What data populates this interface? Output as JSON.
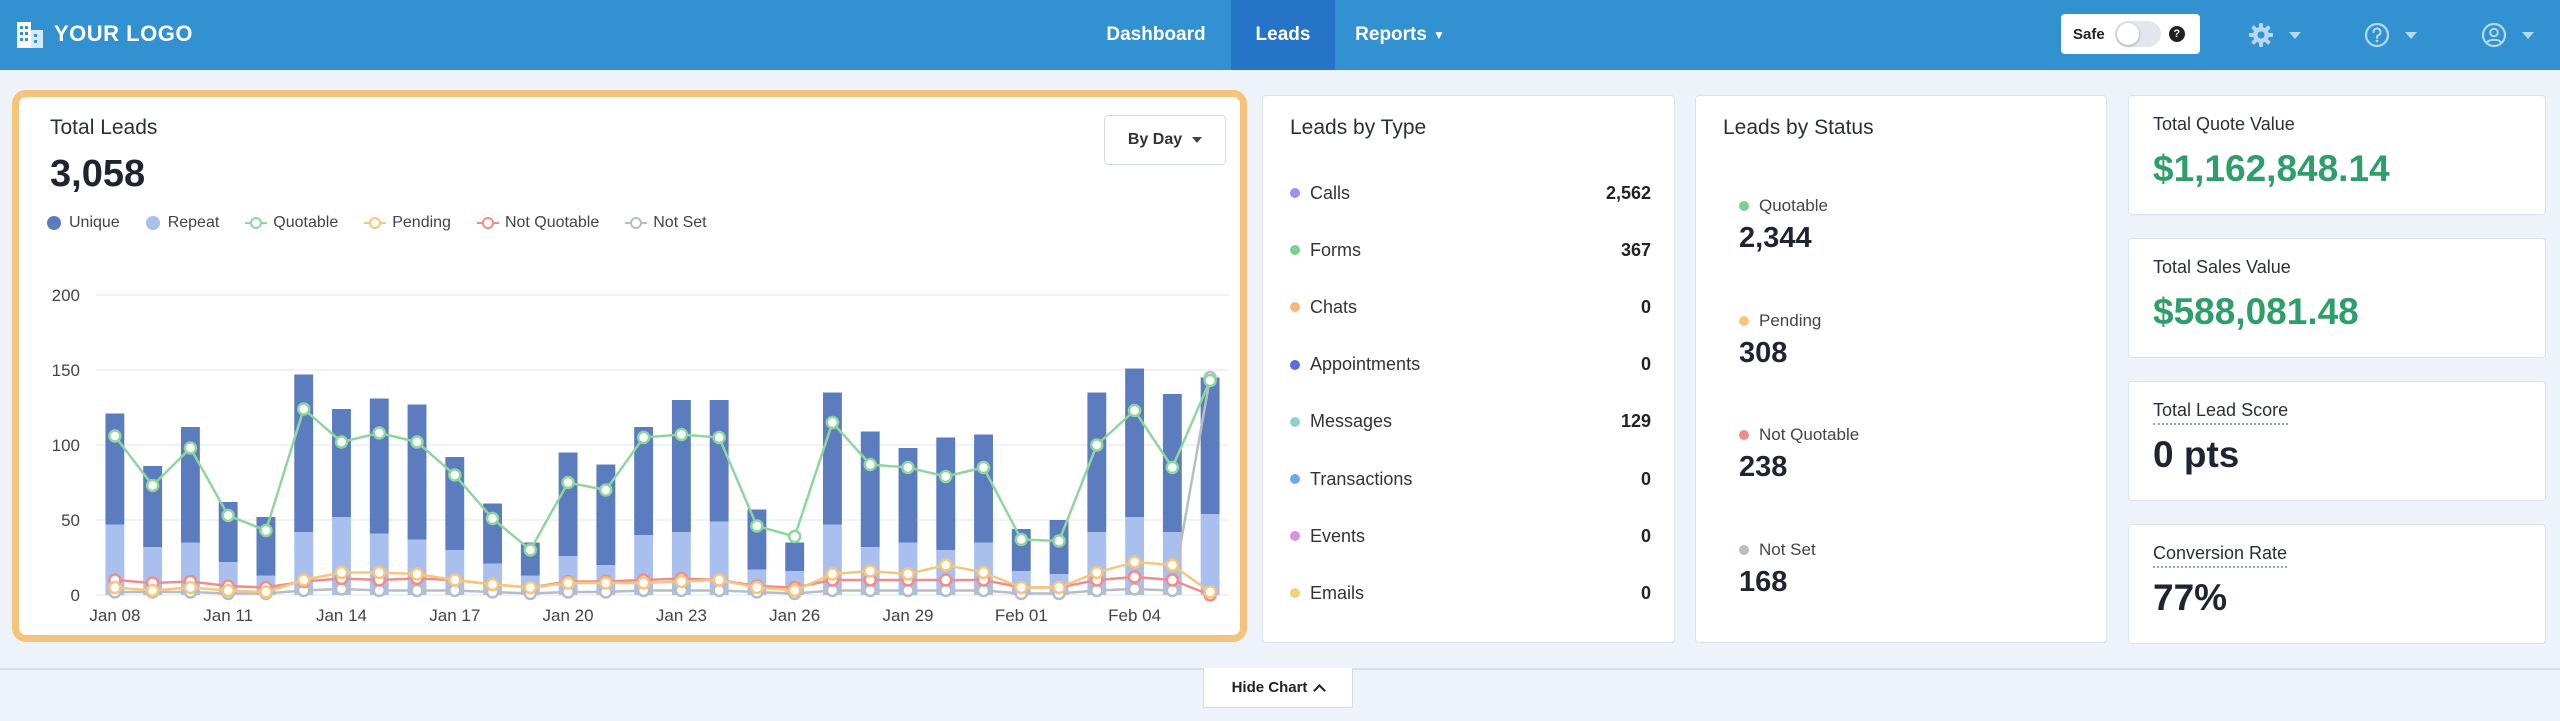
{
  "brand": {
    "logo_text": "YOUR LOGO"
  },
  "nav": {
    "items": [
      {
        "label": "Dashboard",
        "active": false
      },
      {
        "label": "Leads",
        "active": true
      },
      {
        "label": "Reports",
        "active": false
      }
    ],
    "safe_label": "Safe",
    "safe_on": false,
    "help_glyph": "?",
    "icons": [
      "settings-gear-icon",
      "help-circle-icon",
      "user-profile-icon"
    ]
  },
  "chart_card": {
    "title": "Total Leads",
    "total": "3,058",
    "range_button": "By Day",
    "legend": [
      {
        "label": "Unique",
        "color": "#5b7dbf",
        "style": "dot"
      },
      {
        "label": "Repeat",
        "color": "#a9c0ef",
        "style": "dot"
      },
      {
        "label": "Quotable",
        "color": "#8fd69e",
        "style": "ring"
      },
      {
        "label": "Pending",
        "color": "#f6c77a",
        "style": "ring"
      },
      {
        "label": "Not Quotable",
        "color": "#f08c8c",
        "style": "ring"
      },
      {
        "label": "Not Set",
        "color": "#b8bcc4",
        "style": "ring"
      }
    ]
  },
  "chart_data": {
    "type": "bar",
    "stacked": true,
    "ylim": [
      0,
      200
    ],
    "yticks": [
      0,
      50,
      100,
      150,
      200
    ],
    "grid": true,
    "categories": [
      "Jan 08",
      "Jan 09",
      "Jan 10",
      "Jan 11",
      "Jan 12",
      "Jan 13",
      "Jan 14",
      "Jan 15",
      "Jan 16",
      "Jan 17",
      "Jan 18",
      "Jan 19",
      "Jan 20",
      "Jan 21",
      "Jan 22",
      "Jan 23",
      "Jan 24",
      "Jan 25",
      "Jan 26",
      "Jan 27",
      "Jan 28",
      "Jan 29",
      "Jan 30",
      "Jan 31",
      "Feb 01",
      "Feb 02",
      "Feb 03",
      "Feb 04",
      "Feb 05",
      "Feb 06"
    ],
    "xtick_labels": [
      "Jan 08",
      "Jan 11",
      "Jan 14",
      "Jan 17",
      "Jan 20",
      "Jan 23",
      "Jan 26",
      "Jan 29",
      "Feb 01",
      "Feb 04"
    ],
    "xtick_indices": [
      0,
      3,
      6,
      9,
      12,
      15,
      18,
      21,
      24,
      27
    ],
    "series": [
      {
        "name": "Repeat",
        "kind": "bar",
        "color": "#a9c0ef",
        "values": [
          47,
          32,
          35,
          22,
          13,
          42,
          52,
          41,
          37,
          30,
          21,
          13,
          26,
          20,
          40,
          42,
          49,
          17,
          16,
          47,
          32,
          35,
          30,
          35,
          16,
          14,
          42,
          52,
          42,
          54
        ]
      },
      {
        "name": "Unique",
        "kind": "bar",
        "color": "#5b7dbf",
        "values": [
          74,
          54,
          77,
          40,
          39,
          105,
          72,
          90,
          90,
          62,
          40,
          22,
          69,
          67,
          72,
          88,
          81,
          40,
          19,
          88,
          77,
          63,
          75,
          72,
          28,
          36,
          93,
          99,
          92,
          91
        ]
      },
      {
        "name": "Quotable",
        "kind": "line",
        "color": "#8fd69e",
        "values": [
          106,
          73,
          98,
          53,
          43,
          124,
          102,
          108,
          102,
          80,
          51,
          30,
          75,
          70,
          105,
          107,
          105,
          46,
          39,
          115,
          87,
          85,
          79,
          85,
          37,
          36,
          100,
          123,
          85,
          143
        ]
      },
      {
        "name": "Pending",
        "kind": "line",
        "color": "#f6c77a",
        "values": [
          5,
          3,
          5,
          3,
          2,
          10,
          15,
          15,
          14,
          10,
          7,
          5,
          8,
          8,
          8,
          9,
          10,
          5,
          3,
          14,
          16,
          14,
          20,
          15,
          5,
          5,
          15,
          22,
          20,
          2
        ]
      },
      {
        "name": "Not Quotable",
        "kind": "line",
        "color": "#f08c8c",
        "values": [
          10,
          8,
          9,
          6,
          5,
          9,
          11,
          10,
          11,
          10,
          7,
          5,
          9,
          9,
          10,
          11,
          10,
          6,
          5,
          10,
          10,
          10,
          10,
          10,
          5,
          5,
          10,
          12,
          10,
          0
        ]
      },
      {
        "name": "Not Set",
        "kind": "line",
        "color": "#b8bcc4",
        "values": [
          2,
          2,
          2,
          1,
          1,
          3,
          4,
          3,
          3,
          3,
          2,
          1,
          2,
          2,
          3,
          3,
          3,
          2,
          1,
          3,
          3,
          3,
          3,
          3,
          1,
          1,
          3,
          4,
          3,
          145
        ]
      }
    ]
  },
  "leads_by_type": {
    "title": "Leads by Type",
    "rows": [
      {
        "label": "Calls",
        "value": "2,562",
        "color": "#a58de8"
      },
      {
        "label": "Forms",
        "value": "367",
        "color": "#7ccf8f"
      },
      {
        "label": "Chats",
        "value": "0",
        "color": "#f6b87a"
      },
      {
        "label": "Appointments",
        "value": "0",
        "color": "#5b6fd6"
      },
      {
        "label": "Messages",
        "value": "129",
        "color": "#8fd0cf"
      },
      {
        "label": "Transactions",
        "value": "0",
        "color": "#6fa8e8"
      },
      {
        "label": "Events",
        "value": "0",
        "color": "#e08ee0"
      },
      {
        "label": "Emails",
        "value": "0",
        "color": "#f6cf7a"
      }
    ]
  },
  "leads_by_status": {
    "title": "Leads by Status",
    "items": [
      {
        "label": "Quotable",
        "value": "2,344",
        "color": "#7ccf8f"
      },
      {
        "label": "Pending",
        "value": "308",
        "color": "#f6c77a"
      },
      {
        "label": "Not Quotable",
        "value": "238",
        "color": "#f08c8c"
      },
      {
        "label": "Not Set",
        "value": "168",
        "color": "#b8bcc4"
      }
    ]
  },
  "kpis": [
    {
      "label": "Total Quote Value",
      "value": "$1,162,848.14"
    },
    {
      "label": "Total Sales Value",
      "value": "$588,081.48"
    },
    {
      "label": "Total Lead Score",
      "value": "0 pts"
    },
    {
      "label": "Conversion Rate",
      "value": "77%"
    }
  ],
  "footer": {
    "hide_chart_label": "Hide Chart"
  }
}
